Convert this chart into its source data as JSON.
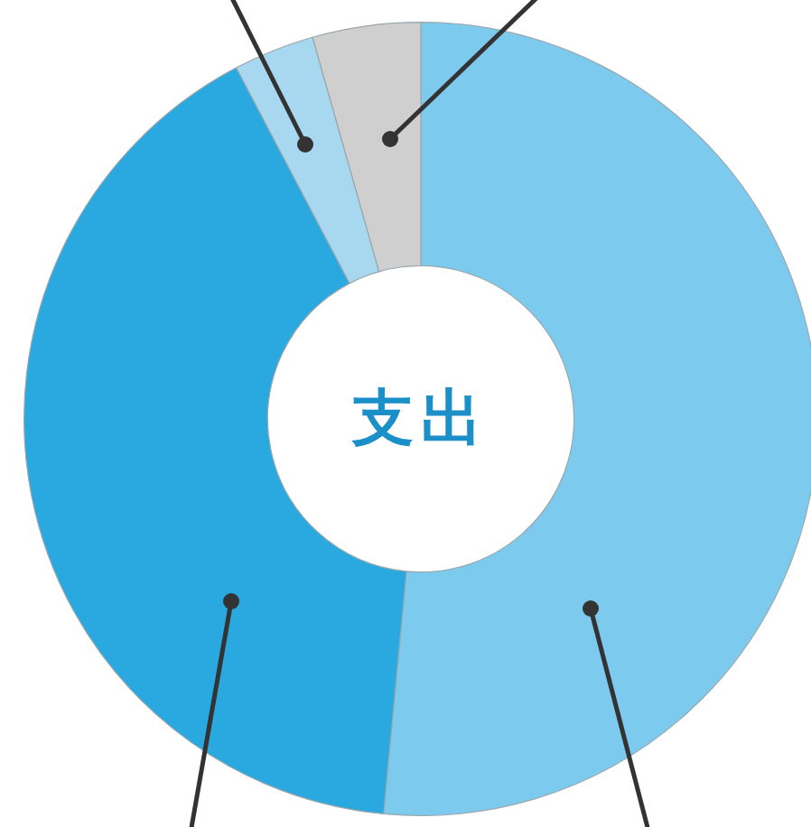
{
  "chart_data": {
    "type": "donut",
    "title": "支出",
    "categories": [
      null,
      null,
      null,
      null
    ],
    "values": [
      51.5,
      40.8,
      3.3,
      4.4
    ],
    "colors": [
      "#7ccbee",
      "#29a9e0",
      "#a8d8f0",
      "#cfcfcf"
    ],
    "legend": false
  }
}
